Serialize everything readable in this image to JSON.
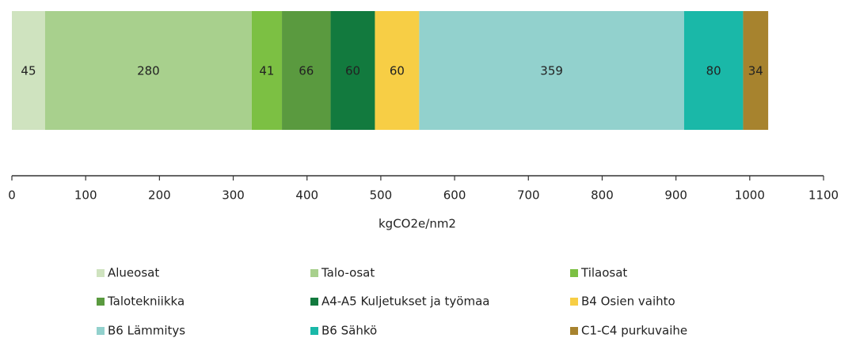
{
  "chart_data": {
    "type": "stacked-bar-horizontal",
    "x_label": "kgCO2e/nm2",
    "xlim": [
      0,
      1100
    ],
    "xticks": [
      0,
      100,
      200,
      300,
      400,
      500,
      600,
      700,
      800,
      900,
      1000,
      1100
    ],
    "legend": "bottom",
    "series": [
      {
        "name": "Alueosat",
        "color": "#cfe3bf",
        "values": [
          45
        ]
      },
      {
        "name": "Talo-osat",
        "color": "#a8d08d",
        "values": [
          280
        ]
      },
      {
        "name": "Tilaosat",
        "color": "#7cc043",
        "values": [
          41
        ]
      },
      {
        "name": "Talotekniikka",
        "color": "#5a9a3f",
        "values": [
          66
        ]
      },
      {
        "name": "A4-A5 Kuljetukset ja työmaa",
        "color": "#127a3e",
        "values": [
          60
        ]
      },
      {
        "name": "B4 Osien vaihto",
        "color": "#f7ce45",
        "values": [
          60
        ]
      },
      {
        "name": "B6 Lämmitys",
        "color": "#92d1cd",
        "values": [
          359
        ]
      },
      {
        "name": "B6 Sähkö",
        "color": "#1ab8a8",
        "values": [
          80
        ]
      },
      {
        "name": "C1-C4 purkuvaihe",
        "color": "#a7832e",
        "values": [
          34
        ]
      }
    ]
  }
}
